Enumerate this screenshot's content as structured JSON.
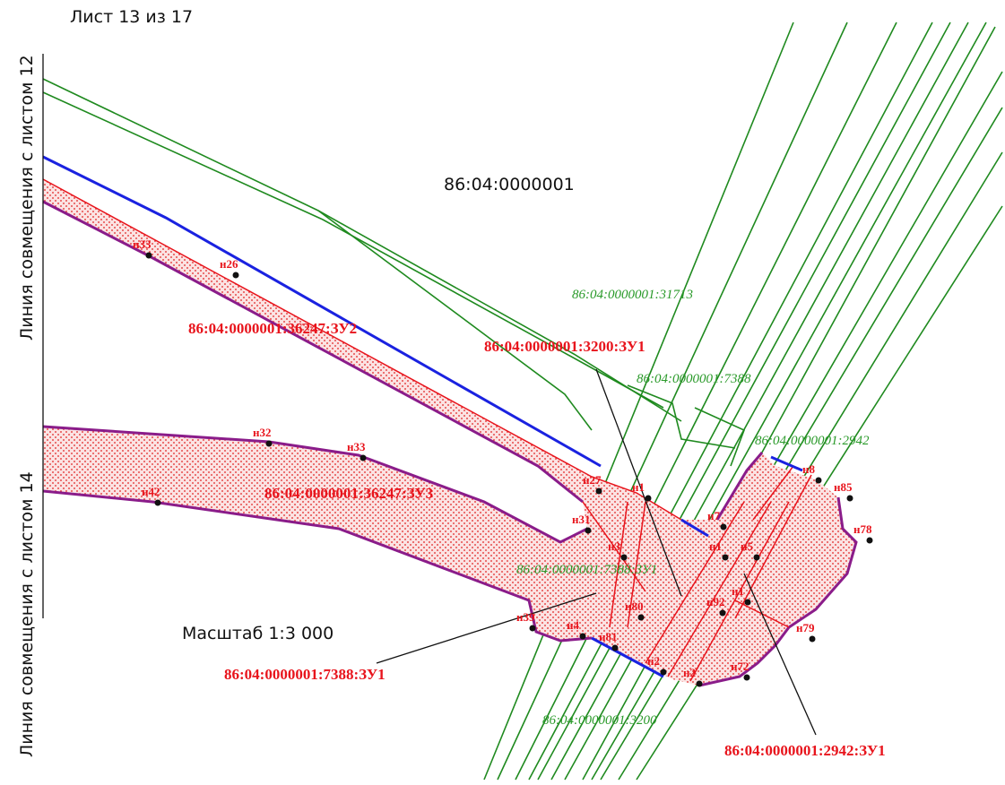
{
  "header": {
    "sheet": "Лист 13 из  17"
  },
  "border_labels": [
    "Линия совмещения с листом  12",
    "Линия совмещения с листом  14"
  ],
  "block_label": "86:04:0000001",
  "scale": "Масштаб 1:3 000",
  "parcel_labels": [
    "86:04:0000001:36247:ЗУ2",
    "86:04:0000001:3200:ЗУ1",
    "86:04:0000001:36247:ЗУ3",
    "86:04:0000001:7388:ЗУ1",
    "86:04:0000001:2942:ЗУ1"
  ],
  "neighbor_labels": [
    "86:04:0000001:31713",
    "86:04:0000001:7388",
    "86:04:0000001:2942",
    "86:04:0000001:7388:ЗУ1",
    "86:04:0000001:3200"
  ],
  "points": [
    "н33",
    "н26",
    "н32",
    "н33",
    "н42",
    "н27",
    "н1",
    "н31",
    "н3",
    "н39",
    "н4",
    "н81",
    "н80",
    "н2",
    "н2",
    "н72",
    "н79",
    "н92",
    "н1",
    "н5",
    "н1",
    "н7",
    "н8",
    "н85",
    "н78"
  ]
}
